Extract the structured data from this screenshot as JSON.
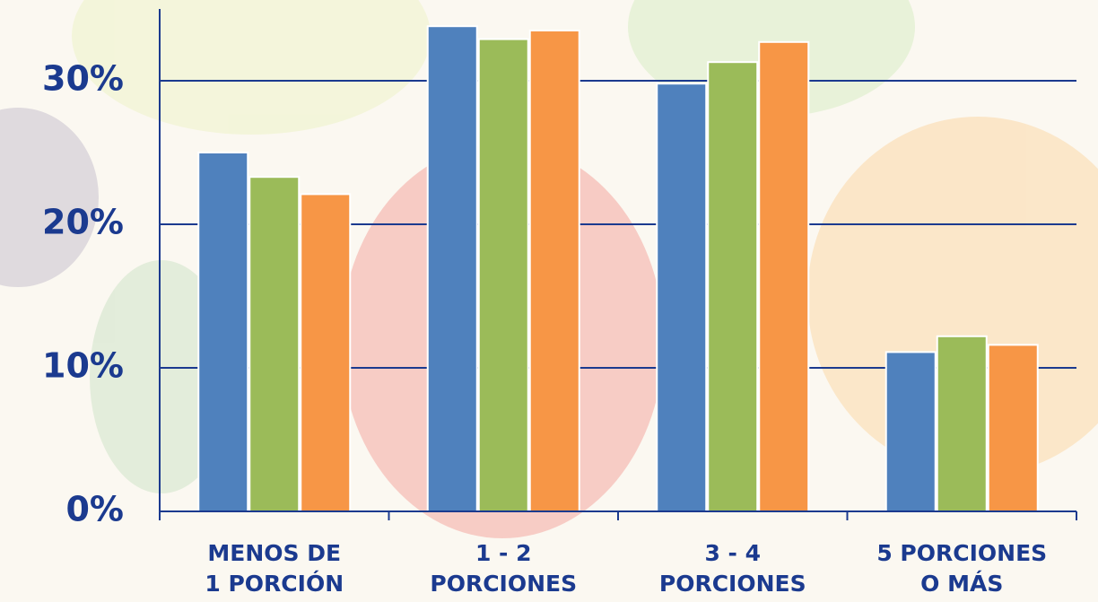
{
  "chart_data": {
    "type": "bar",
    "categories": [
      "MENOS DE\n1 PORCIÓN",
      "1 - 2\nPORCIONES",
      "3 - 4\nPORCIONES",
      "5 PORCIONES\nO MÁS"
    ],
    "series": [
      {
        "color": "#4f81bd",
        "values": [
          25.0,
          33.8,
          29.8,
          11.1
        ]
      },
      {
        "color": "#9bbb59",
        "values": [
          23.3,
          32.9,
          31.3,
          12.2
        ]
      },
      {
        "color": "#f79646",
        "values": [
          22.1,
          33.5,
          32.7,
          11.6
        ]
      }
    ],
    "ylim": [
      0,
      35
    ],
    "yticks": [
      {
        "value": 0,
        "label": "0%"
      },
      {
        "value": 10,
        "label": "10%"
      },
      {
        "value": 20,
        "label": "20%"
      },
      {
        "value": 30,
        "label": "30%"
      }
    ],
    "grid": true
  }
}
